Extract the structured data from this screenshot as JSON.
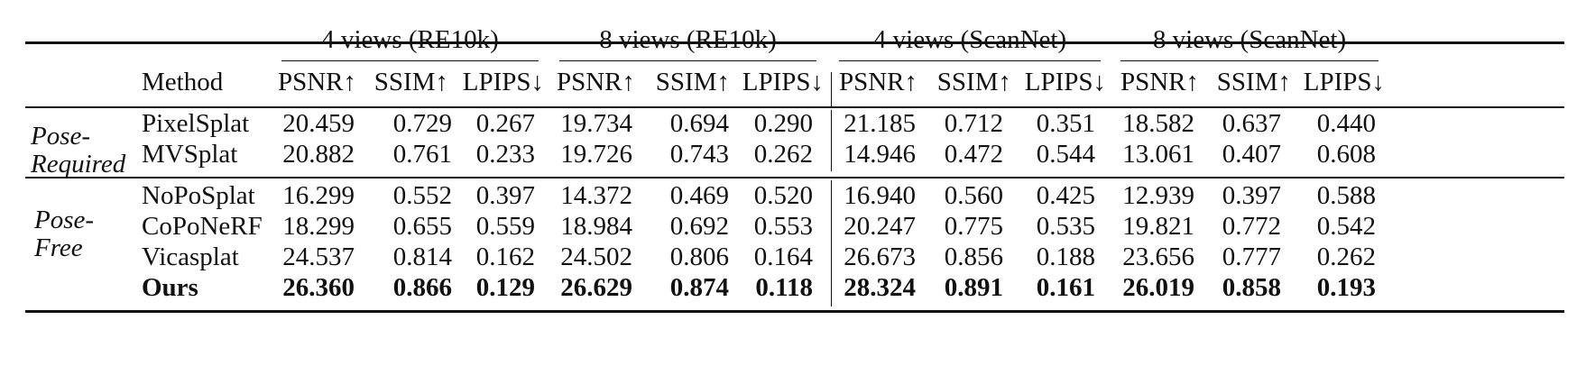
{
  "groups": [
    "4 views (RE10k)",
    "8 views (RE10k)",
    "4 views (ScanNet)",
    "8 views (ScanNet)"
  ],
  "method_header": "Method",
  "metrics": [
    "PSNR↑",
    "SSIM↑",
    "LPIPS↓",
    "PSNR↑",
    "SSIM↑",
    "LPIPS↓",
    "PSNR↑",
    "SSIM↑",
    "LPIPS↓",
    "PSNR↑",
    "SSIM↑",
    "LPIPS↓"
  ],
  "categories": {
    "pose_required": "Pose-\nRequired",
    "pose_free": "Pose-\nFree"
  },
  "rows": [
    {
      "method": "PixelSplat",
      "values": [
        "20.459",
        "0.729",
        "0.267",
        "19.734",
        "0.694",
        "0.290",
        "21.185",
        "0.712",
        "0.351",
        "18.582",
        "0.637",
        "0.440"
      ]
    },
    {
      "method": "MVSplat",
      "values": [
        "20.882",
        "0.761",
        "0.233",
        "19.726",
        "0.743",
        "0.262",
        "14.946",
        "0.472",
        "0.544",
        "13.061",
        "0.407",
        "0.608"
      ]
    },
    {
      "method": "NoPoSplat",
      "values": [
        "16.299",
        "0.552",
        "0.397",
        "14.372",
        "0.469",
        "0.520",
        "16.940",
        "0.560",
        "0.425",
        "12.939",
        "0.397",
        "0.588"
      ]
    },
    {
      "method": "CoPoNeRF",
      "values": [
        "18.299",
        "0.655",
        "0.559",
        "18.984",
        "0.692",
        "0.553",
        "20.247",
        "0.775",
        "0.535",
        "19.821",
        "0.772",
        "0.542"
      ]
    },
    {
      "method": "Vicasplat",
      "values": [
        "24.537",
        "0.814",
        "0.162",
        "24.502",
        "0.806",
        "0.164",
        "26.673",
        "0.856",
        "0.188",
        "23.656",
        "0.777",
        "0.262"
      ]
    },
    {
      "method": "Ours",
      "values": [
        "26.360",
        "0.866",
        "0.129",
        "26.629",
        "0.874",
        "0.118",
        "28.324",
        "0.891",
        "0.161",
        "26.019",
        "0.858",
        "0.193"
      ]
    }
  ]
}
